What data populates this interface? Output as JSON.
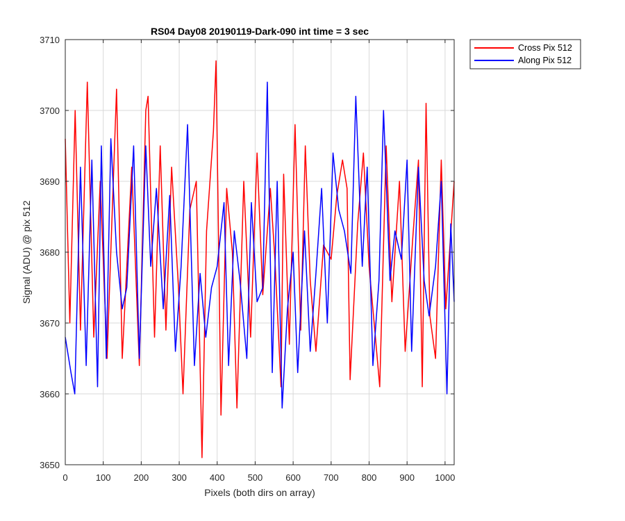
{
  "chart_data": {
    "type": "line",
    "title": "RS04 Day08 20190119-Dark-090 int time = 3 sec",
    "xlabel": "Pixels (both dirs on array)",
    "ylabel": "Signal (ADU) @ pix 512",
    "xlim": [
      0,
      1024
    ],
    "ylim": [
      3650,
      3710
    ],
    "xticks": [
      0,
      100,
      200,
      300,
      400,
      500,
      600,
      700,
      800,
      900,
      1000
    ],
    "yticks": [
      3650,
      3660,
      3670,
      3680,
      3690,
      3700,
      3710
    ],
    "grid": true,
    "legend_position": "outside-top-right",
    "series": [
      {
        "name": "Cross Pix 512",
        "color": "#ff0000",
        "points": [
          [
            0,
            3696
          ],
          [
            12,
            3670
          ],
          [
            26,
            3700
          ],
          [
            40,
            3669
          ],
          [
            58,
            3704
          ],
          [
            75,
            3668
          ],
          [
            92,
            3690
          ],
          [
            110,
            3665
          ],
          [
            135,
            3703
          ],
          [
            150,
            3665
          ],
          [
            175,
            3692
          ],
          [
            195,
            3664
          ],
          [
            212,
            3700
          ],
          [
            218,
            3702
          ],
          [
            235,
            3668
          ],
          [
            250,
            3695
          ],
          [
            265,
            3669
          ],
          [
            280,
            3692
          ],
          [
            298,
            3675
          ],
          [
            310,
            3660
          ],
          [
            328,
            3686
          ],
          [
            345,
            3690
          ],
          [
            360,
            3651
          ],
          [
            372,
            3683
          ],
          [
            390,
            3697
          ],
          [
            397,
            3707
          ],
          [
            410,
            3657
          ],
          [
            425,
            3689
          ],
          [
            440,
            3680
          ],
          [
            452,
            3658
          ],
          [
            470,
            3690
          ],
          [
            488,
            3668
          ],
          [
            505,
            3694
          ],
          [
            520,
            3674
          ],
          [
            540,
            3689
          ],
          [
            552,
            3679
          ],
          [
            568,
            3661
          ],
          [
            575,
            3691
          ],
          [
            590,
            3667
          ],
          [
            605,
            3698
          ],
          [
            620,
            3669
          ],
          [
            632,
            3695
          ],
          [
            645,
            3676
          ],
          [
            660,
            3666
          ],
          [
            680,
            3681
          ],
          [
            700,
            3679
          ],
          [
            715,
            3688
          ],
          [
            730,
            3693
          ],
          [
            742,
            3689
          ],
          [
            750,
            3662
          ],
          [
            770,
            3684
          ],
          [
            785,
            3694
          ],
          [
            800,
            3678
          ],
          [
            815,
            3669
          ],
          [
            828,
            3661
          ],
          [
            845,
            3695
          ],
          [
            860,
            3673
          ],
          [
            880,
            3690
          ],
          [
            895,
            3666
          ],
          [
            915,
            3682
          ],
          [
            930,
            3693
          ],
          [
            940,
            3661
          ],
          [
            950,
            3701
          ],
          [
            960,
            3671
          ],
          [
            975,
            3665
          ],
          [
            990,
            3693
          ],
          [
            1002,
            3672
          ],
          [
            1024,
            3690
          ]
        ]
      },
      {
        "name": "Along Pix 512",
        "color": "#0000ff",
        "points": [
          [
            0,
            3668
          ],
          [
            15,
            3663
          ],
          [
            25,
            3660
          ],
          [
            40,
            3692
          ],
          [
            55,
            3664
          ],
          [
            70,
            3693
          ],
          [
            85,
            3661
          ],
          [
            95,
            3695
          ],
          [
            108,
            3665
          ],
          [
            120,
            3696
          ],
          [
            135,
            3680
          ],
          [
            150,
            3672
          ],
          [
            162,
            3675
          ],
          [
            180,
            3695
          ],
          [
            195,
            3665
          ],
          [
            212,
            3695
          ],
          [
            225,
            3678
          ],
          [
            240,
            3689
          ],
          [
            258,
            3672
          ],
          [
            275,
            3688
          ],
          [
            290,
            3666
          ],
          [
            305,
            3678
          ],
          [
            322,
            3698
          ],
          [
            340,
            3664
          ],
          [
            355,
            3677
          ],
          [
            370,
            3668
          ],
          [
            385,
            3675
          ],
          [
            400,
            3678
          ],
          [
            418,
            3687
          ],
          [
            430,
            3664
          ],
          [
            445,
            3683
          ],
          [
            460,
            3676
          ],
          [
            478,
            3665
          ],
          [
            490,
            3687
          ],
          [
            505,
            3673
          ],
          [
            520,
            3675
          ],
          [
            532,
            3704
          ],
          [
            545,
            3663
          ],
          [
            558,
            3690
          ],
          [
            571,
            3658
          ],
          [
            585,
            3672
          ],
          [
            600,
            3680
          ],
          [
            612,
            3663
          ],
          [
            630,
            3683
          ],
          [
            645,
            3666
          ],
          [
            660,
            3677
          ],
          [
            675,
            3689
          ],
          [
            690,
            3670
          ],
          [
            705,
            3694
          ],
          [
            720,
            3686
          ],
          [
            735,
            3683
          ],
          [
            752,
            3677
          ],
          [
            765,
            3702
          ],
          [
            782,
            3678
          ],
          [
            795,
            3692
          ],
          [
            810,
            3664
          ],
          [
            826,
            3676
          ],
          [
            838,
            3700
          ],
          [
            855,
            3676
          ],
          [
            868,
            3683
          ],
          [
            885,
            3679
          ],
          [
            900,
            3693
          ],
          [
            912,
            3666
          ],
          [
            930,
            3692
          ],
          [
            945,
            3676
          ],
          [
            958,
            3671
          ],
          [
            975,
            3678
          ],
          [
            990,
            3690
          ],
          [
            1005,
            3660
          ],
          [
            1015,
            3684
          ],
          [
            1024,
            3673
          ]
        ]
      }
    ]
  }
}
